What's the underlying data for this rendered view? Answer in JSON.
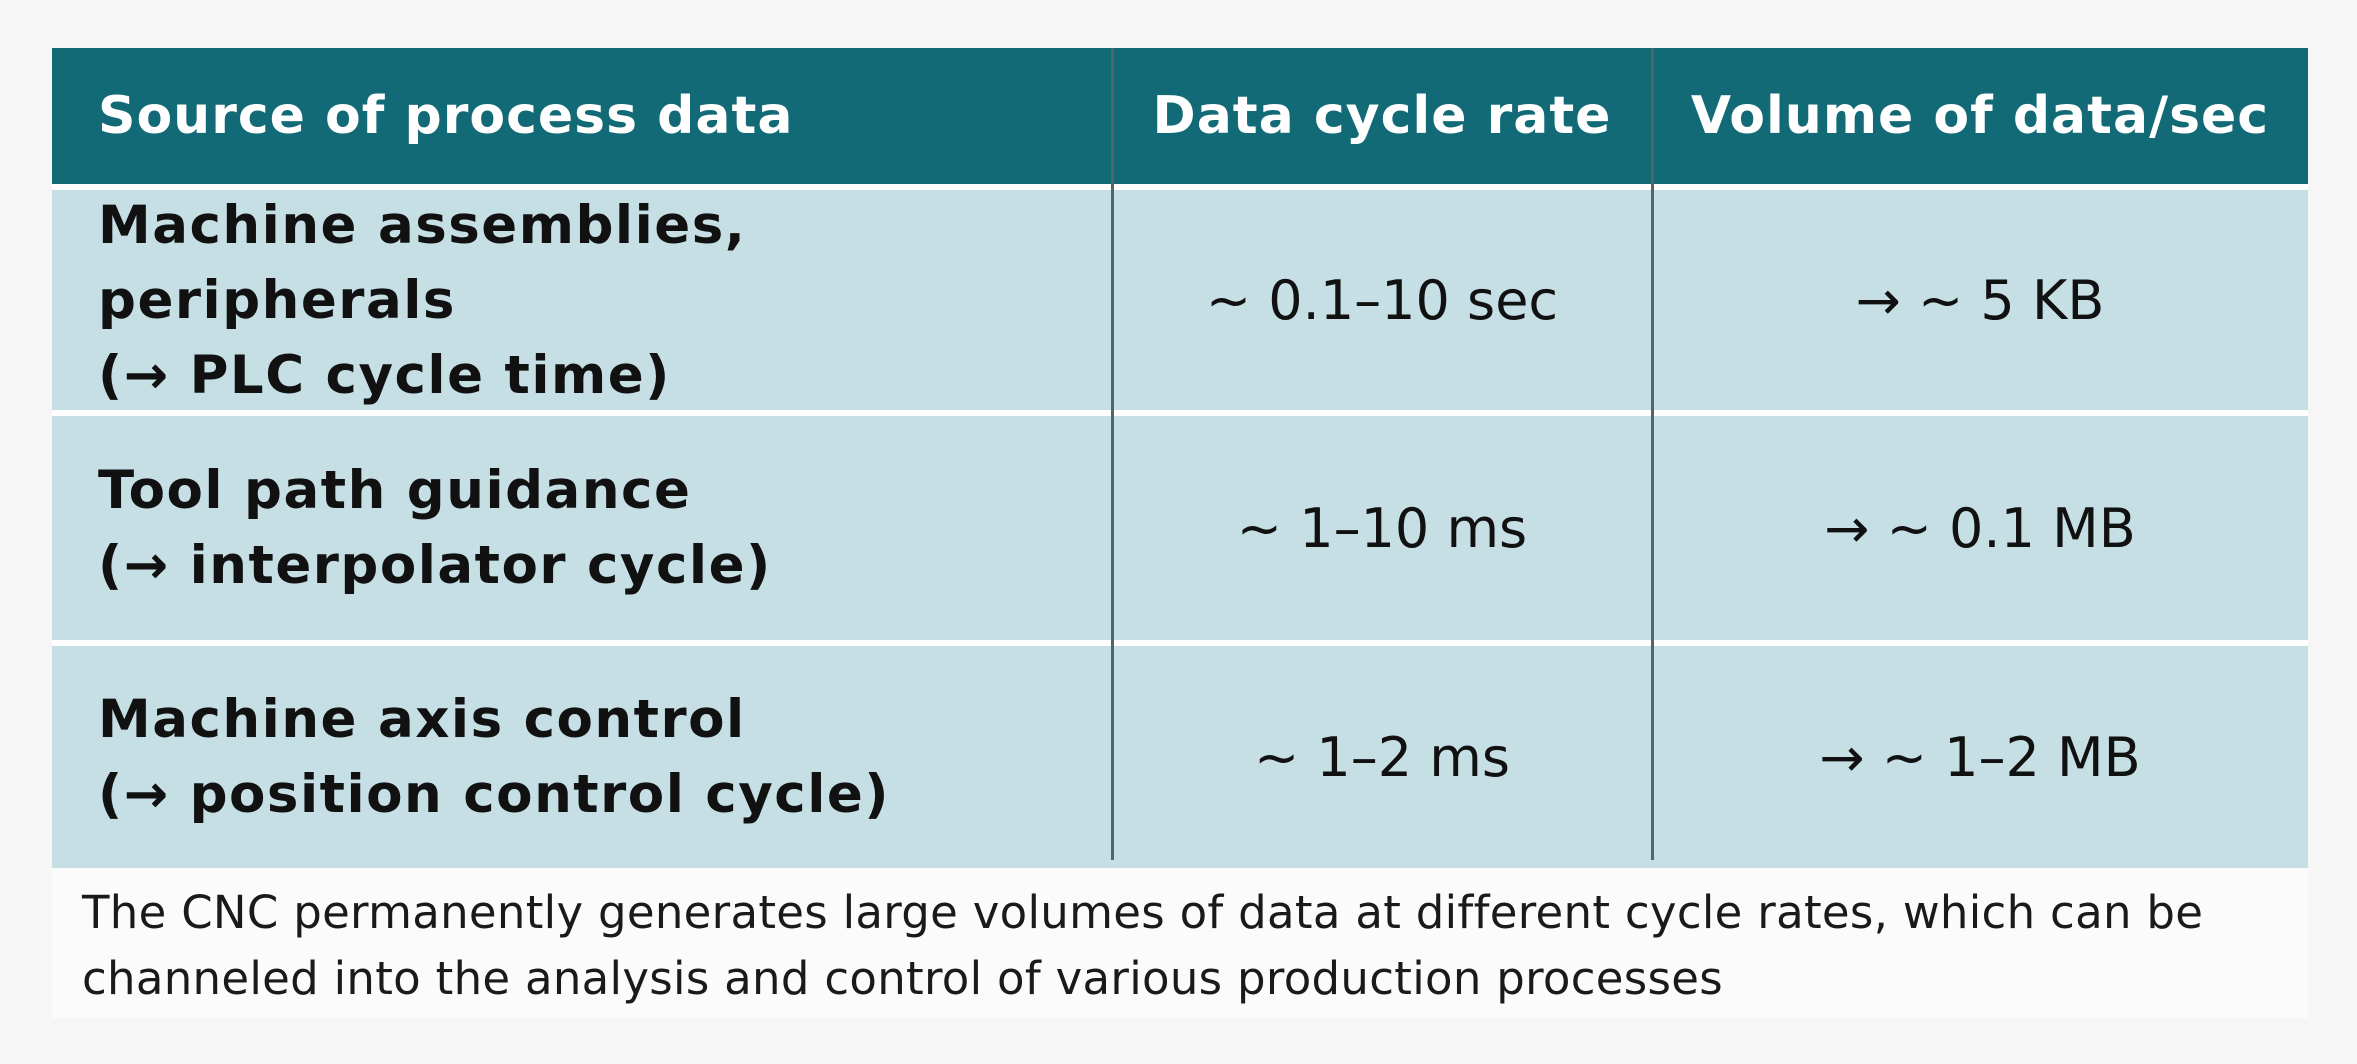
{
  "table": {
    "headers": [
      "Source of process data",
      "Data cycle rate",
      "Volume of data/sec"
    ],
    "rows": [
      {
        "source_line1": "Machine assemblies, peripherals",
        "source_line2": "(→ PLC cycle time)",
        "cycle_rate": "~ 0.1–10 sec",
        "volume": "→ ~ 5 KB"
      },
      {
        "source_line1": "Tool path guidance",
        "source_line2": "(→ interpolator cycle)",
        "cycle_rate": "~ 1–10 ms",
        "volume": "→ ~ 0.1 MB"
      },
      {
        "source_line1": "Machine axis control",
        "source_line2": "(→ position control cycle)",
        "cycle_rate": "~ 1–2 ms",
        "volume": "→ ~ 1–2 MB"
      }
    ]
  },
  "caption": {
    "line1": "The CNC permanently generates large volumes of data at different cycle rates, which can be",
    "line2": "channeled into the analysis and control of various production processes"
  },
  "colors": {
    "header_bg": "#126a76",
    "row_bg": "#c5dfe5",
    "divider": "#4f6670"
  }
}
